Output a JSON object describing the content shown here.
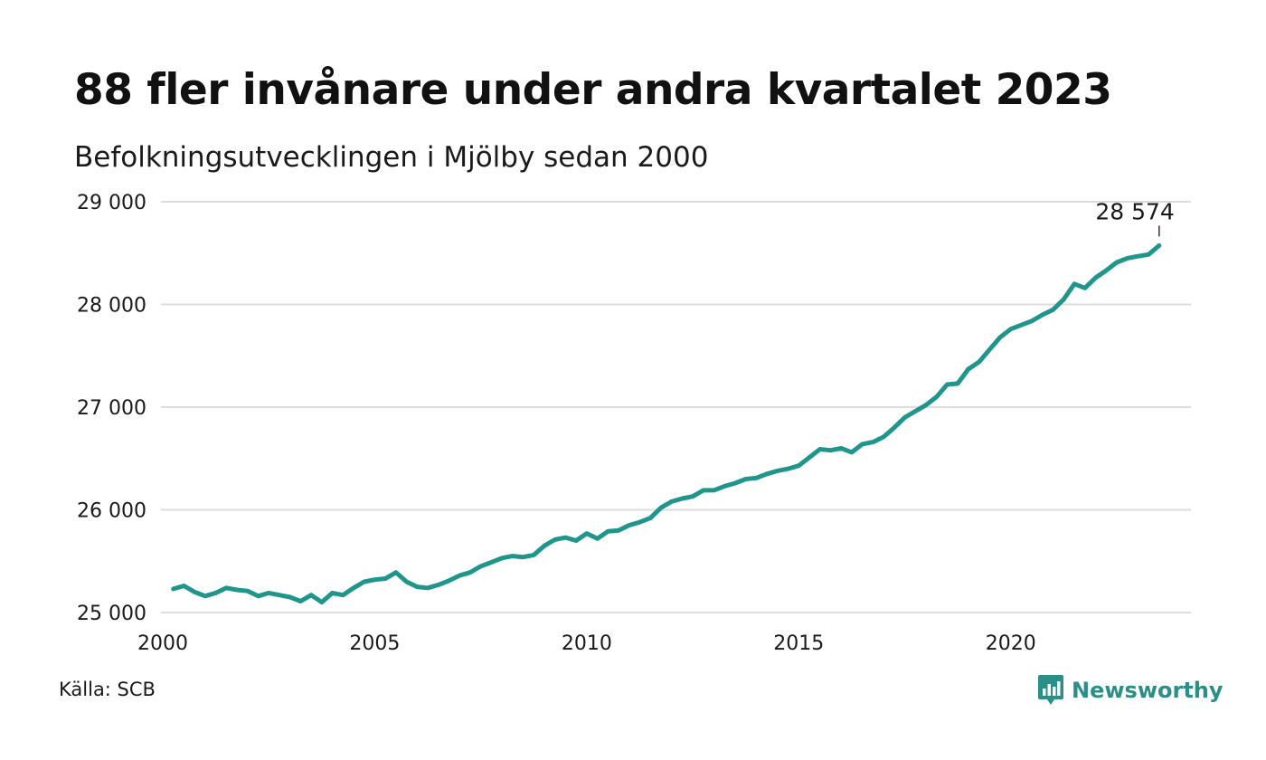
{
  "header": {
    "title": "88 fler invånare under andra kvartalet 2023",
    "subtitle": "Befolkningsutvecklingen i Mjölby sedan 2000"
  },
  "footer": {
    "source": "Källa: SCB",
    "brand": "Newsworthy",
    "brand_icon": "newsworthy-logo-icon",
    "brand_color": "#2a8f86"
  },
  "chart_data": {
    "type": "line",
    "title": "88 fler invånare under andra kvartalet 2023",
    "subtitle": "Befolkningsutvecklingen i Mjölby sedan 2000",
    "xlabel": "",
    "ylabel": "",
    "xlim": [
      2000,
      2024.25
    ],
    "ylim": [
      25000,
      29000
    ],
    "x_ticks": [
      2000,
      2005,
      2010,
      2015,
      2020
    ],
    "x_tick_labels": [
      "2000",
      "2005",
      "2010",
      "2015",
      "2020"
    ],
    "y_ticks": [
      25000,
      26000,
      27000,
      28000,
      29000
    ],
    "y_tick_labels": [
      "25 000",
      "26 000",
      "27 000",
      "28 000",
      "29 000"
    ],
    "grid": "horizontal",
    "line_color": "#1f968b",
    "grid_color": "#dddddd",
    "annotation": {
      "x": 2023.5,
      "y": 28574,
      "label": "28 574"
    },
    "series": [
      {
        "x": [
          2000.25,
          2000.5,
          2000.75,
          2001.0,
          2001.25,
          2001.5,
          2001.75,
          2002.0,
          2002.25,
          2002.5,
          2002.75,
          2003.0,
          2003.25,
          2003.5,
          2003.75,
          2004.0,
          2004.25,
          2004.5,
          2004.75,
          2005.0,
          2005.25,
          2005.5,
          2005.75,
          2006.0,
          2006.25,
          2006.5,
          2006.75,
          2007.0,
          2007.25,
          2007.5,
          2007.75,
          2008.0,
          2008.25,
          2008.5,
          2008.75,
          2009.0,
          2009.25,
          2009.5,
          2009.75,
          2010.0,
          2010.25,
          2010.5,
          2010.75,
          2011.0,
          2011.25,
          2011.5,
          2011.75,
          2012.0,
          2012.25,
          2012.5,
          2012.75,
          2013.0,
          2013.25,
          2013.5,
          2013.75,
          2014.0,
          2014.25,
          2014.5,
          2014.75,
          2015.0,
          2015.25,
          2015.5,
          2015.75,
          2016.0,
          2016.25,
          2016.5,
          2016.75,
          2017.0,
          2017.25,
          2017.5,
          2017.75,
          2018.0,
          2018.25,
          2018.5,
          2018.75,
          2019.0,
          2019.25,
          2019.5,
          2019.75,
          2020.0,
          2020.25,
          2020.5,
          2020.75,
          2021.0,
          2021.25,
          2021.5,
          2021.75,
          2022.0,
          2022.25,
          2022.5,
          2022.75,
          2023.0,
          2023.25,
          2023.5
        ],
        "values": [
          25230,
          25260,
          25200,
          25160,
          25190,
          25240,
          25220,
          25210,
          25160,
          25190,
          25170,
          25150,
          25110,
          25170,
          25100,
          25190,
          25170,
          25240,
          25300,
          25320,
          25330,
          25390,
          25300,
          25250,
          25240,
          25270,
          25310,
          25360,
          25390,
          25450,
          25490,
          25530,
          25550,
          25540,
          25560,
          25650,
          25710,
          25730,
          25700,
          25770,
          25720,
          25790,
          25800,
          25850,
          25880,
          25920,
          26020,
          26080,
          26110,
          26130,
          26190,
          26190,
          26230,
          26260,
          26300,
          26310,
          26350,
          26380,
          26400,
          26430,
          26510,
          26590,
          26580,
          26600,
          26560,
          26640,
          26660,
          26710,
          26800,
          26900,
          26960,
          27020,
          27100,
          27220,
          27230,
          27370,
          27440,
          27560,
          27680,
          27760,
          27800,
          27840,
          27900,
          27950,
          28050,
          28200,
          28160,
          28260,
          28330,
          28410,
          28450,
          28470,
          28486,
          28574
        ]
      }
    ]
  }
}
